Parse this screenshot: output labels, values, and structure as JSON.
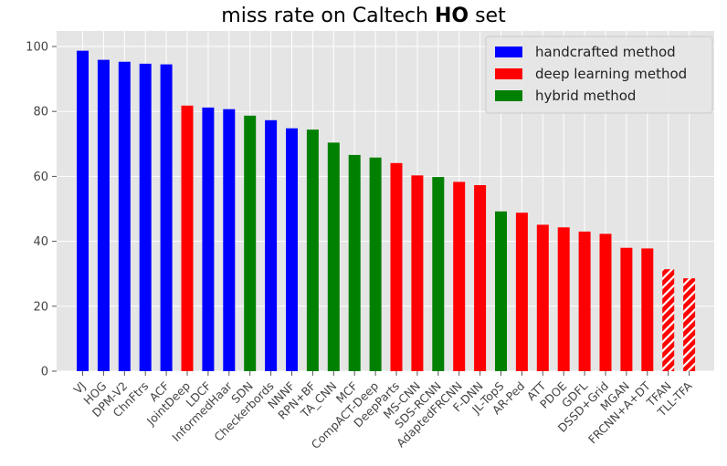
{
  "chart_data": {
    "type": "bar",
    "title": {
      "prefix": "miss rate on Caltech ",
      "bold": "HO",
      "suffix": " set"
    },
    "xlabel": "",
    "ylabel": "",
    "ylim": [
      0,
      105
    ],
    "yticks": [
      0,
      20,
      40,
      60,
      80,
      100
    ],
    "grid": true,
    "legend_position": "top-right",
    "colors": {
      "handcrafted": "#0000ff",
      "deep": "#ff0000",
      "hybrid": "#008000",
      "background": "#e5e5e5",
      "grid": "#ffffff"
    },
    "legend": [
      {
        "group": "handcrafted",
        "label": "handcrafted method"
      },
      {
        "group": "deep",
        "label": "deep learning method"
      },
      {
        "group": "hybrid",
        "label": "hybrid method"
      }
    ],
    "categories": [
      "VJ",
      "HOG",
      "DPM-V2",
      "ChnFtrs",
      "ACF",
      "JointDeep",
      "LDCF",
      "InformedHaar",
      "SDN",
      "Checkerbords",
      "NNNF",
      "RPN+BF",
      "TA_CNN",
      "MCF",
      "CompACT-Deep",
      "DeepParts",
      "MS-CNN",
      "SDS-RCNN",
      "AdaptedFRCNN",
      "F-DNN",
      "JL-TopS",
      "AR-Ped",
      "ATT",
      "PDOE",
      "GDFL",
      "DSSD+Grid",
      "MGAN",
      "FRCNN+A+DT",
      "TFAN",
      "TLL-TFA"
    ],
    "values": [
      98.7,
      95.9,
      95.3,
      94.7,
      94.5,
      81.8,
      81.2,
      80.7,
      78.7,
      77.3,
      74.8,
      74.4,
      70.4,
      66.6,
      65.8,
      64.1,
      60.3,
      59.8,
      58.3,
      57.3,
      49.2,
      48.8,
      45.1,
      44.3,
      43.0,
      42.3,
      38.0,
      37.8,
      31.4,
      28.6
    ],
    "groups": [
      "handcrafted",
      "handcrafted",
      "handcrafted",
      "handcrafted",
      "handcrafted",
      "deep",
      "handcrafted",
      "handcrafted",
      "hybrid",
      "handcrafted",
      "handcrafted",
      "hybrid",
      "hybrid",
      "hybrid",
      "hybrid",
      "deep",
      "deep",
      "hybrid",
      "deep",
      "deep",
      "hybrid",
      "deep",
      "deep",
      "deep",
      "deep",
      "deep",
      "deep",
      "deep",
      "deep",
      "deep"
    ],
    "hatched": [
      false,
      false,
      false,
      false,
      false,
      false,
      false,
      false,
      false,
      false,
      false,
      false,
      false,
      false,
      false,
      false,
      false,
      false,
      false,
      false,
      false,
      false,
      false,
      false,
      false,
      false,
      false,
      false,
      true,
      true
    ]
  }
}
